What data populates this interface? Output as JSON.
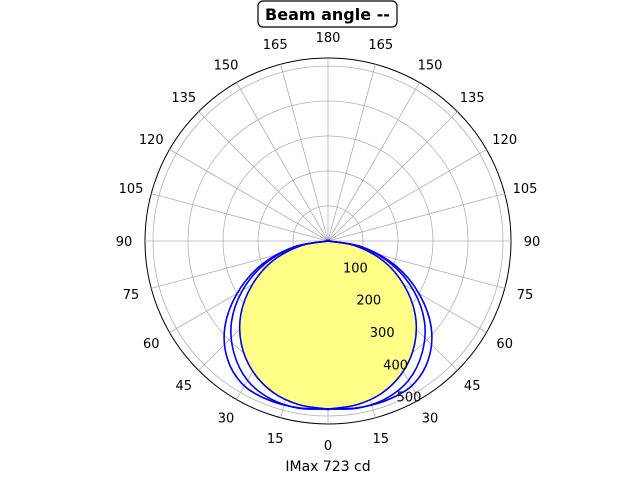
{
  "chart_data": {
    "type": "polar",
    "title": "Beam angle --",
    "xlabel": "IMax 723 cd",
    "angle_tick_labels": [
      "180",
      "165",
      "150",
      "135",
      "120",
      "105",
      "90",
      "75",
      "60",
      "45",
      "30",
      "15",
      "0",
      "15",
      "30",
      "45",
      "60",
      "75",
      "90",
      "105",
      "120",
      "135",
      "150",
      "165"
    ],
    "radial_tick_labels": [
      "100",
      "200",
      "300",
      "400",
      "500"
    ],
    "rlim": [
      0,
      500
    ],
    "grid": true,
    "fill_color": "#ffff88",
    "line_color": "#0000ee",
    "series": [
      {
        "angles_deg": [
          0,
          10,
          20,
          30,
          40,
          50,
          60,
          70,
          80,
          90
        ],
        "right_r": [
          480,
          475,
          460,
          430,
          385,
          325,
          250,
          170,
          80,
          0
        ],
        "left_r": [
          480,
          475,
          460,
          430,
          385,
          325,
          250,
          170,
          80,
          0
        ],
        "filled": true
      },
      {
        "angles_deg": [
          0,
          10,
          20,
          30,
          40,
          50,
          60,
          70,
          80,
          90
        ],
        "right_r": [
          480,
          484,
          485,
          478,
          445,
          385,
          300,
          205,
          100,
          0
        ],
        "left_r": [
          480,
          484,
          485,
          478,
          445,
          385,
          300,
          205,
          100,
          0
        ],
        "filled": false
      },
      {
        "angles_deg": [
          0,
          10,
          20,
          30,
          40,
          50,
          60,
          70,
          80,
          90
        ],
        "right_r": [
          480,
          485,
          480,
          460,
          418,
          360,
          282,
          193,
          95,
          0
        ],
        "left_r": [
          480,
          485,
          480,
          460,
          418,
          360,
          282,
          193,
          95,
          0
        ],
        "filled": false
      }
    ]
  }
}
